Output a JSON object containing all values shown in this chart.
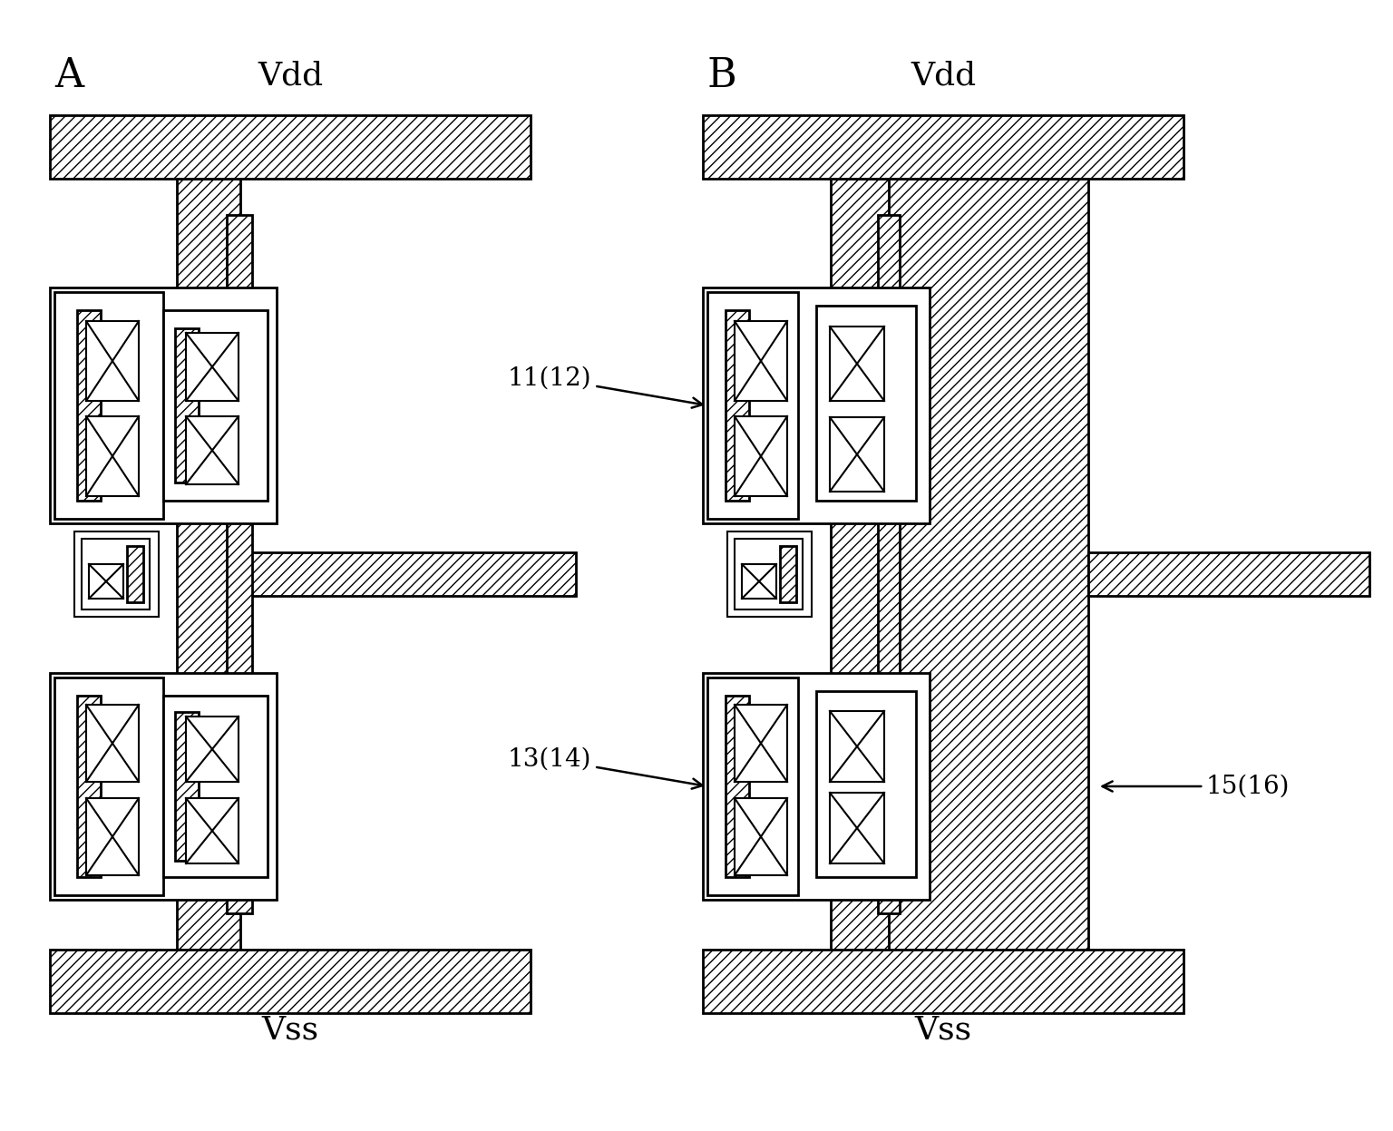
{
  "figsize": [
    15.36,
    12.47
  ],
  "dpi": 100,
  "bg_color": "#ffffff",
  "title_A": "A",
  "title_B": "B",
  "label_vdd_A": "Vdd",
  "label_vss_A": "Vss",
  "label_vdd_B": "Vdd",
  "label_vss_B": "Vss",
  "label_11_12": "11(12)",
  "label_13_14": "13(14)",
  "label_15_16": "15(16)"
}
